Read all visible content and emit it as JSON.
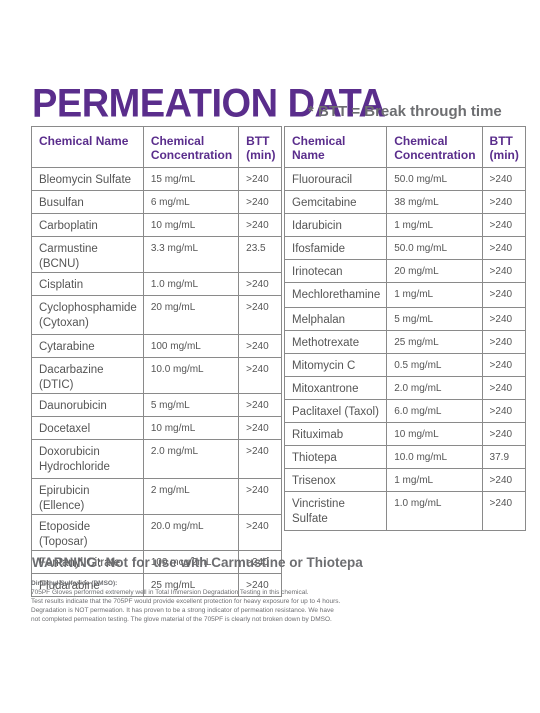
{
  "title": "PERMEATION DATA",
  "note": "* BTT = Break through time",
  "headers": {
    "name": "Chemical Name",
    "conc": "Chemical Concentration",
    "btt": "BTT (min)"
  },
  "left_rows": [
    {
      "name": "Bleomycin Sulfate",
      "conc": "15 mg/mL",
      "btt": ">240"
    },
    {
      "name": "Busulfan",
      "conc": "6 mg/mL",
      "btt": ">240"
    },
    {
      "name": "Carboplatin",
      "conc": "10 mg/mL",
      "btt": ">240"
    },
    {
      "name": "Carmustine (BCNU)",
      "conc": "3.3 mg/mL",
      "btt": "23.5"
    },
    {
      "name": "Cisplatin",
      "conc": "1.0 mg/mL",
      "btt": ">240"
    },
    {
      "name": "Cyclophosphamide (Cytoxan)",
      "conc": "20 mg/mL",
      "btt": ">240"
    },
    {
      "name": "Cytarabine",
      "conc": "100 mg/mL",
      "btt": ">240"
    },
    {
      "name": "Dacarbazine (DTIC)",
      "conc": "10.0 mg/mL",
      "btt": ">240"
    },
    {
      "name": "Daunorubicin",
      "conc": "5 mg/mL",
      "btt": ">240"
    },
    {
      "name": "Docetaxel",
      "conc": "10 mg/mL",
      "btt": ">240"
    },
    {
      "name": "Doxorubicin Hydrochloride",
      "conc": "2.0 mg/mL",
      "btt": ">240"
    },
    {
      "name": "Epirubicin (Ellence)",
      "conc": "2 mg/mL",
      "btt": ">240"
    },
    {
      "name": "Etoposide (Toposar)",
      "conc": "20.0 mg/mL",
      "btt": ">240"
    },
    {
      "name": "Fentanyl Citrate",
      "conc": "100 mcg/2mL",
      "btt": ">240"
    },
    {
      "name": "Fludarabine",
      "conc": "25 mg/mL",
      "btt": ">240"
    }
  ],
  "right_rows": [
    {
      "name": "Fluorouracil",
      "conc": "50.0 mg/mL",
      "btt": ">240"
    },
    {
      "name": "Gemcitabine",
      "conc": "38 mg/mL",
      "btt": ">240"
    },
    {
      "name": "Idarubicin",
      "conc": "1 mg/mL",
      "btt": ">240"
    },
    {
      "name": "Ifosfamide",
      "conc": "50.0 mg/mL",
      "btt": ">240"
    },
    {
      "name": "Irinotecan",
      "conc": "20 mg/mL",
      "btt": ">240"
    },
    {
      "name": "Mechlorethamine",
      "conc": "1 mg/mL",
      "btt": ">240"
    },
    {
      "name": "Melphalan",
      "conc": "5 mg/mL",
      "btt": ">240"
    },
    {
      "name": "Methotrexate",
      "conc": "25 mg/mL",
      "btt": ">240"
    },
    {
      "name": "Mitomycin C",
      "conc": "0.5 mg/mL",
      "btt": ">240"
    },
    {
      "name": "Mitoxantrone",
      "conc": "2.0 mg/mL",
      "btt": ">240"
    },
    {
      "name": "Paclitaxel (Taxol)",
      "conc": "6.0 mg/mL",
      "btt": ">240"
    },
    {
      "name": "Rituximab",
      "conc": "10 mg/mL",
      "btt": ">240"
    },
    {
      "name": "Thiotepa",
      "conc": "10.0 mg/mL",
      "btt": "37.9"
    },
    {
      "name": "Trisenox",
      "conc": "1 mg/mL",
      "btt": ">240"
    },
    {
      "name": "Vincristine Sulfate",
      "conc": "1.0 mg/mL",
      "btt": ">240"
    }
  ],
  "warning": "WARNING: Not for use with Carmustine or Thiotepa",
  "dmso": {
    "heading": "Dimethyl Sulfoxide (DMSO):",
    "lines": [
      "705PF Gloves performed extremely well in Total Immersion Degradation Testing in this chemical.",
      "Test results indicate that the 705PF would provide excellent protection for heavy exposure for up to 4 hours.",
      "Degradation is NOT permeation. It has proven to be a strong indicator of permeation resistance. We have",
      "not completed permeation testing. The glove material of the 705PF is clearly not broken down by DMSO."
    ]
  }
}
